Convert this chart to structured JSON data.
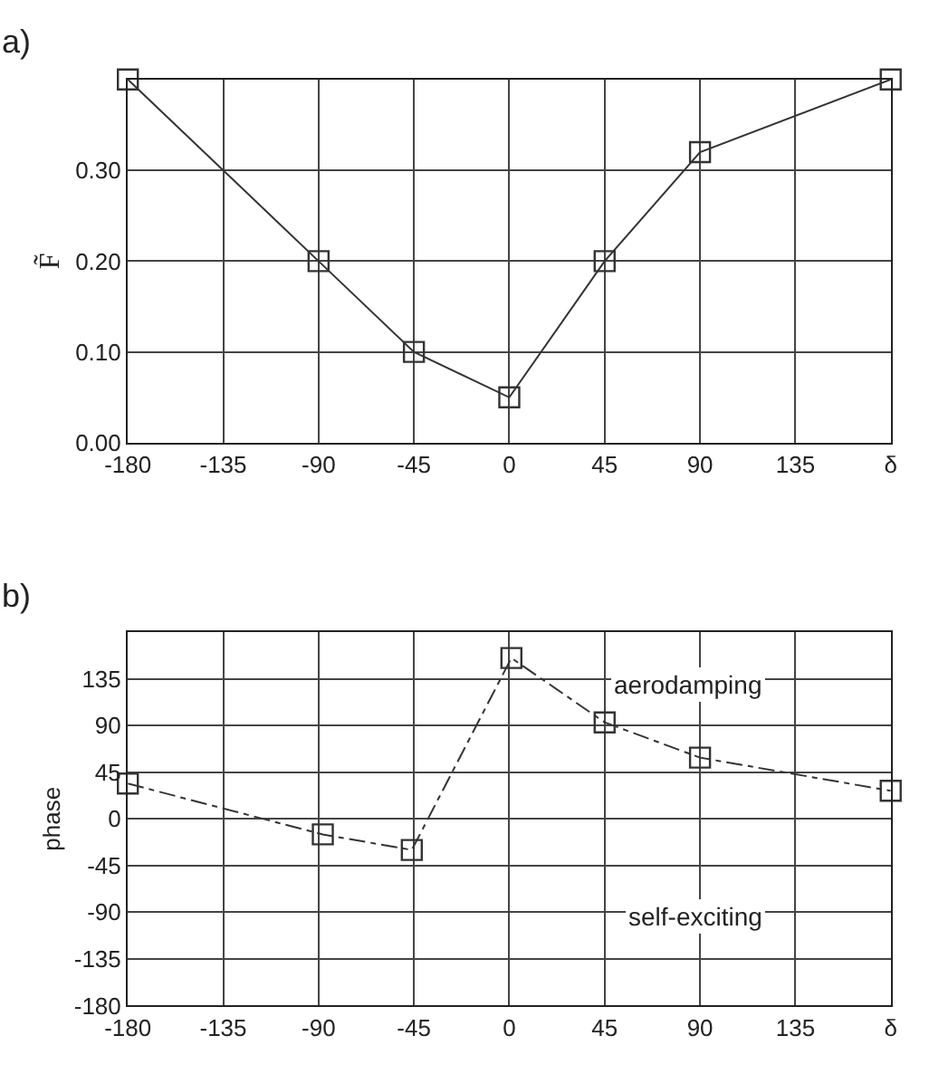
{
  "chart_data": [
    {
      "type": "line",
      "title": "a)",
      "ylabel": "F̃",
      "x": [
        -180,
        -90,
        -45,
        0,
        45,
        90,
        180
      ],
      "series": [
        {
          "color": "#333333",
          "values": [
            0.4,
            0.2,
            0.1,
            0.05,
            0.2,
            0.32,
            0.4
          ]
        }
      ],
      "xlim": [
        -180,
        180
      ],
      "xticks": [
        -180,
        -135,
        -90,
        -45,
        0,
        45,
        90,
        135,
        {
          "value": 180,
          "label": "δ"
        }
      ],
      "ylim": [
        0,
        0.4
      ],
      "yticks": [
        {
          "value": 0,
          "label": "0.00"
        },
        {
          "value": 0.1,
          "label": "0.10"
        },
        {
          "value": 0.2,
          "label": "0.20"
        },
        {
          "value": 0.3,
          "label": "0.30"
        },
        {
          "value": 0.4,
          "label": null
        }
      ],
      "grid": true,
      "marker": "square",
      "line_style": "solid"
    },
    {
      "type": "line",
      "title": "b)",
      "ylabel": "phase",
      "x": [
        -180,
        -88,
        -46,
        1,
        45,
        90,
        180
      ],
      "series": [
        {
          "color": "#333333",
          "values": [
            34,
            -15,
            -30,
            155,
            93,
            59,
            27
          ]
        }
      ],
      "xlim": [
        -180,
        180
      ],
      "xticks": [
        -180,
        -135,
        -90,
        -45,
        0,
        45,
        90,
        135,
        {
          "value": 180,
          "label": "δ"
        }
      ],
      "ylim": [
        -180,
        180
      ],
      "yticks": [
        -180,
        -135,
        -90,
        -45,
        0,
        45,
        90,
        135,
        {
          "value": 180,
          "label": null
        }
      ],
      "grid": true,
      "marker": "square",
      "line_style": "dashed",
      "annotations": [
        "aerodamping",
        "self-exciting"
      ]
    }
  ]
}
